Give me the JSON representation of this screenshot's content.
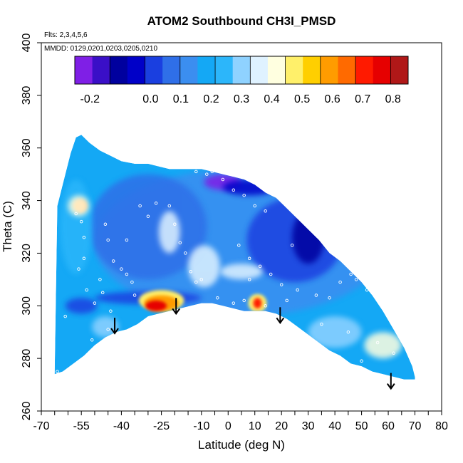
{
  "chart_data": {
    "type": "heatmap",
    "title": "ATOM2 Southbound CH3I_PMSD",
    "subtitle_flights": "Flts: 2,3,4,5,6",
    "subtitle_dates": "MMDD: 0129,0201,0203,0205,0210",
    "xlabel": "Latitude (deg N)",
    "ylabel": "Theta (C)",
    "xlim": [
      -70,
      80
    ],
    "ylim": [
      260,
      400
    ],
    "x_tick_values": [
      -70,
      -55,
      -40,
      -25,
      -10,
      0,
      10,
      20,
      30,
      40,
      50,
      60,
      70,
      80
    ],
    "x_tick_labels": [
      "-70",
      "-55",
      "-40",
      "-25",
      "-10",
      "0",
      "10",
      "20",
      "30",
      "40",
      "50",
      "60",
      "70",
      "80"
    ],
    "x_minor_ticks": [
      -65,
      -60,
      -50,
      -45,
      -35,
      -30,
      -20,
      -15,
      -5,
      5,
      15,
      25,
      35,
      45,
      55,
      65,
      75
    ],
    "y_tick_values": [
      260,
      280,
      300,
      320,
      340,
      360,
      380,
      400
    ],
    "y_tick_labels": [
      "260",
      "280",
      "300",
      "320",
      "340",
      "360",
      "380",
      "400"
    ],
    "colorbar": {
      "range": [
        -0.25,
        0.85
      ],
      "tick_values": [
        -0.2,
        0.0,
        0.1,
        0.2,
        0.3,
        0.4,
        0.5,
        0.6,
        0.7,
        0.8
      ],
      "tick_labels": [
        "-0.2",
        "0.0",
        "0.1",
        "0.2",
        "0.3",
        "0.4",
        "0.5",
        "0.6",
        "0.7",
        "0.8"
      ],
      "colors": [
        "#7f1fe6",
        "#3a0fc7",
        "#00009e",
        "#0000c8",
        "#1a3fe0",
        "#2f6fe8",
        "#3b8ef0",
        "#14a8f5",
        "#2cb6fa",
        "#8fd2ff",
        "#dff2ff",
        "#ffffe0",
        "#fff06a",
        "#ffcf00",
        "#ff9c00",
        "#ff6a00",
        "#ff1a00",
        "#e60000",
        "#b01818"
      ]
    },
    "curtain_outline": {
      "top_lat": [
        -64,
        -61,
        -59,
        -57,
        -55,
        -52,
        -48,
        -44,
        -40,
        -35,
        -30,
        -26,
        -22,
        -18,
        -14,
        -10,
        -6,
        -2,
        2,
        6,
        10,
        14,
        18,
        22,
        26,
        30,
        34,
        38,
        42,
        46,
        50,
        54,
        58,
        62,
        66,
        69,
        70
      ],
      "top_theta": [
        338,
        350,
        358,
        364,
        365,
        362,
        359,
        357,
        355,
        354,
        354,
        353,
        352,
        352,
        352,
        352,
        351,
        350,
        349,
        348,
        346,
        343,
        341,
        337,
        333,
        329,
        325,
        320,
        317,
        313,
        309,
        304,
        298,
        291,
        284,
        277,
        273
      ],
      "bottom_lat": [
        70,
        66,
        62,
        58,
        54,
        50,
        46,
        42,
        38,
        34,
        30,
        26,
        22,
        18,
        14,
        10,
        6,
        2,
        -2,
        -6,
        -10,
        -14,
        -18,
        -22,
        -26,
        -30,
        -34,
        -38,
        -42,
        -46,
        -50,
        -54,
        -58,
        -62,
        -65
      ],
      "bottom_theta": [
        272,
        272,
        273,
        274,
        275,
        277,
        278,
        281,
        283,
        286,
        289,
        292,
        295,
        297,
        298,
        298,
        298,
        299,
        300,
        301,
        301,
        300,
        299,
        298,
        297,
        296,
        293,
        291,
        290,
        288,
        285,
        281,
        278,
        275,
        274
      ]
    },
    "blobs": [
      {
        "lat": 5,
        "theta": 324,
        "rx": 55,
        "ry": 28,
        "value": 0.13
      },
      {
        "lat": -30,
        "theta": 330,
        "rx": 22,
        "ry": 20,
        "value": 0.06
      },
      {
        "lat": 25,
        "theta": 325,
        "rx": 18,
        "ry": 16,
        "value": 0.02
      },
      {
        "lat": -2,
        "theta": 347,
        "rx": 7,
        "ry": 3,
        "value": -0.22
      },
      {
        "lat": 8,
        "theta": 345,
        "rx": 10,
        "ry": 3,
        "value": -0.05
      },
      {
        "lat": 30,
        "theta": 326,
        "rx": 6,
        "ry": 10,
        "value": -0.08
      },
      {
        "lat": -22,
        "theta": 328,
        "rx": 4,
        "ry": 8,
        "value": 0.33
      },
      {
        "lat": -9,
        "theta": 315,
        "rx": 6,
        "ry": 8,
        "value": 0.33
      },
      {
        "lat": 5,
        "theta": 313,
        "rx": 8,
        "ry": 3,
        "value": 0.36
      },
      {
        "lat": -57,
        "theta": 330,
        "rx": 6,
        "ry": 18,
        "value": 0.26
      },
      {
        "lat": 58,
        "theta": 285,
        "rx": 7,
        "ry": 5,
        "value": 0.42
      },
      {
        "lat": 40,
        "theta": 290,
        "rx": 10,
        "ry": 6,
        "value": 0.28
      },
      {
        "lat": -46,
        "theta": 292,
        "rx": 5,
        "ry": 4,
        "value": 0.3
      },
      {
        "lat": -30,
        "theta": 303,
        "rx": 20,
        "ry": 2.5,
        "value": 0.02
      },
      {
        "lat": -55,
        "theta": 300,
        "rx": 6,
        "ry": 3,
        "value": 0.02
      },
      {
        "lat": -55.5,
        "theta": 338,
        "rx": 2.5,
        "ry": 2.5,
        "value": 0.62
      },
      {
        "lat": -56,
        "theta": 338,
        "rx": 4,
        "ry": 4,
        "value": 0.42
      },
      {
        "lat": -25,
        "theta": 302,
        "rx": 8.5,
        "ry": 4,
        "value": 0.45
      },
      {
        "lat": -25,
        "theta": 301,
        "rx": 6.5,
        "ry": 3,
        "value": 0.6
      },
      {
        "lat": -27,
        "theta": 300,
        "rx": 4,
        "ry": 2,
        "value": 0.76
      },
      {
        "lat": 11,
        "theta": 301,
        "rx": 3.5,
        "ry": 3.5,
        "value": 0.5
      },
      {
        "lat": 11,
        "theta": 301,
        "rx": 1.6,
        "ry": 2,
        "value": 0.68
      }
    ],
    "arrows_lat": [
      -42.5,
      -19.5,
      19.5,
      61
    ],
    "arrows_theta_tip": [
      289.5,
      297,
      293.5,
      268.5
    ],
    "sample_points": [
      [
        -57,
        335
      ],
      [
        -55,
        332
      ],
      [
        -54,
        326
      ],
      [
        -54,
        318
      ],
      [
        -56,
        314
      ],
      [
        -53,
        306
      ],
      [
        -50,
        301
      ],
      [
        -51,
        287
      ],
      [
        -48,
        310
      ],
      [
        -47,
        305
      ],
      [
        -44,
        298
      ],
      [
        -45,
        291
      ],
      [
        -46,
        331
      ],
      [
        -45,
        325
      ],
      [
        -43,
        317
      ],
      [
        -40,
        314
      ],
      [
        -38,
        312
      ],
      [
        -36,
        309
      ],
      [
        -35,
        304
      ],
      [
        -33,
        338
      ],
      [
        -30,
        334
      ],
      [
        -27,
        339
      ],
      [
        -22,
        338
      ],
      [
        -20,
        331
      ],
      [
        -18,
        324
      ],
      [
        -16,
        320
      ],
      [
        -14,
        313
      ],
      [
        -12,
        309
      ],
      [
        -10,
        310
      ],
      [
        -12,
        351
      ],
      [
        -8,
        350
      ],
      [
        -6,
        351
      ],
      [
        -2,
        348
      ],
      [
        2,
        344
      ],
      [
        6,
        342
      ],
      [
        10,
        338
      ],
      [
        14,
        336
      ],
      [
        4,
        323
      ],
      [
        8,
        318
      ],
      [
        12,
        315
      ],
      [
        16,
        312
      ],
      [
        20,
        308
      ],
      [
        24,
        323
      ],
      [
        27,
        340
      ],
      [
        29,
        335
      ],
      [
        31,
        333
      ],
      [
        26,
        306
      ],
      [
        33,
        304
      ],
      [
        38,
        303
      ],
      [
        42,
        309
      ],
      [
        46,
        312
      ],
      [
        48,
        310
      ],
      [
        52,
        306
      ],
      [
        55,
        304
      ],
      [
        57,
        301
      ],
      [
        60,
        296
      ],
      [
        35,
        293
      ],
      [
        45,
        290
      ],
      [
        50,
        279
      ],
      [
        56,
        286
      ],
      [
        62,
        282
      ],
      [
        8,
        310
      ],
      [
        -4,
        303
      ],
      [
        2,
        301
      ],
      [
        6,
        302
      ],
      [
        14,
        300
      ],
      [
        22,
        302
      ],
      [
        -38,
        325
      ],
      [
        -61,
        296
      ],
      [
        -64,
        275
      ]
    ]
  }
}
